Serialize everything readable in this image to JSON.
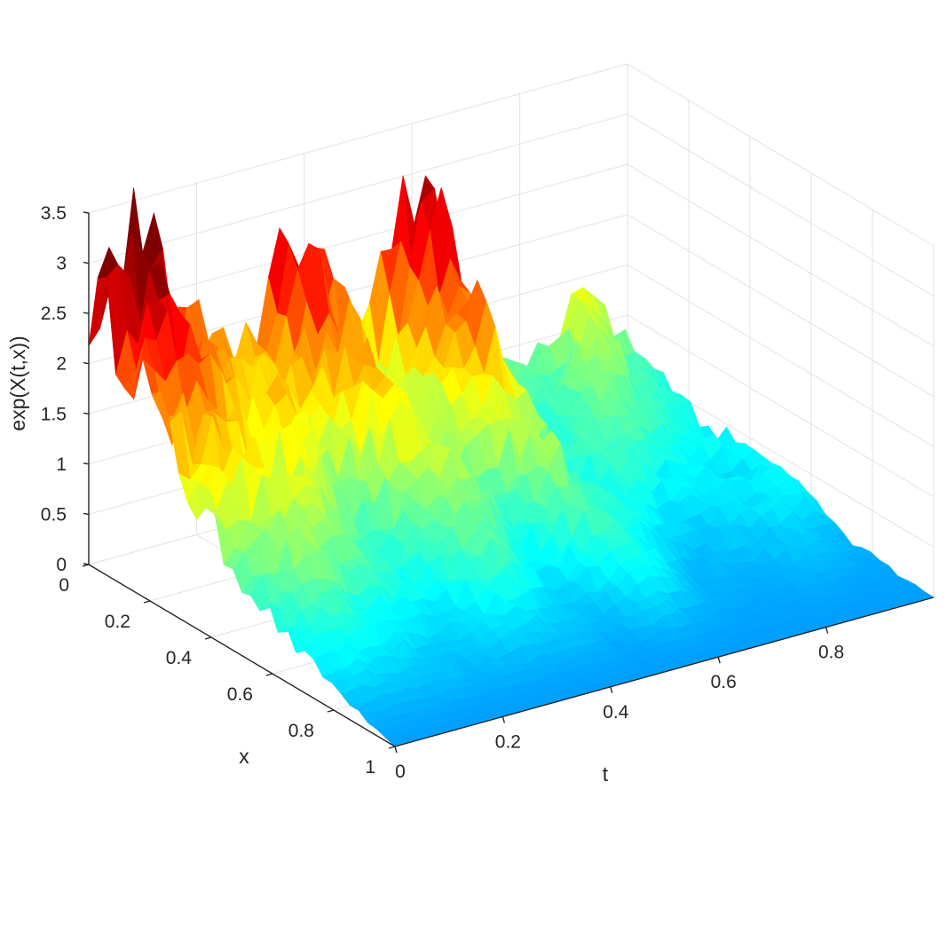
{
  "chart_data": {
    "type": "surface",
    "title": "",
    "xlabel": "t",
    "ylabel": "x",
    "zlabel": "exp(X(t,x))",
    "t_range": [
      0,
      1
    ],
    "x_range": [
      0,
      1
    ],
    "z_range": [
      0,
      3.5
    ],
    "t_ticks": [
      "0",
      "0.2",
      "0.4",
      "0.6",
      "0.8"
    ],
    "x_ticks": [
      "0",
      "0.2",
      "0.4",
      "0.6",
      "0.8",
      "1"
    ],
    "z_ticks": [
      "0",
      "0.5",
      "1",
      "1.5",
      "2",
      "2.5",
      "3",
      "3.5"
    ],
    "grid": true,
    "colormap": "jet",
    "colormap_stops": [
      "#00008f",
      "#0000ff",
      "#00ffff",
      "#ffff00",
      "#ff0000",
      "#800000"
    ],
    "boundary_profiles": {
      "t0_edge": {
        "x": [
          0,
          0.1,
          0.2,
          0.3,
          0.4,
          0.5,
          0.6,
          0.7,
          0.8,
          0.9,
          1.0
        ],
        "z": [
          2.6,
          2.2,
          1.75,
          1.4,
          1.05,
          0.8,
          0.55,
          0.35,
          0.2,
          0.08,
          0.0
        ]
      },
      "x0_edge": {
        "t": [
          0,
          0.05,
          0.1,
          0.15,
          0.2,
          0.3,
          0.4,
          0.5,
          0.6,
          0.7,
          0.8,
          0.9,
          1.0
        ],
        "z": [
          2.6,
          3.2,
          3.0,
          2.3,
          2.0,
          1.5,
          2.6,
          1.35,
          2.7,
          0.9,
          0.8,
          0.9,
          0.7
        ]
      },
      "x1_edge": {
        "t": [
          0,
          0.2,
          0.4,
          0.6,
          0.8,
          1.0
        ],
        "z": [
          0.0,
          0.0,
          0.0,
          0.0,
          0.0,
          0.0
        ]
      }
    }
  }
}
